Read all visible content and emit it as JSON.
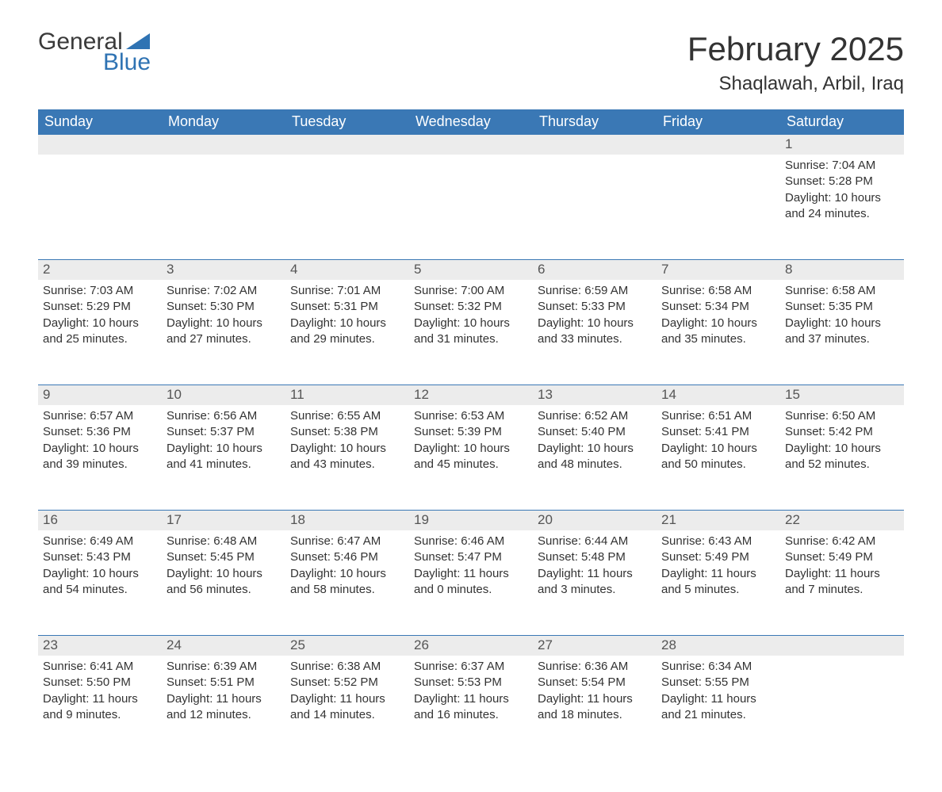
{
  "logo": {
    "word1": "General",
    "word2": "Blue"
  },
  "title": "February 2025",
  "location": "Shaqlawah, Arbil, Iraq",
  "calendar": {
    "type": "table",
    "header_bg": "#3a78b5",
    "header_text_color": "#ffffff",
    "daynum_bg": "#ececec",
    "border_color": "#3a78b5",
    "body_text_color": "#333333",
    "font_family": "Arial",
    "header_fontsize": 18,
    "daynum_fontsize": 17,
    "body_fontsize": 15,
    "columns": [
      "Sunday",
      "Monday",
      "Tuesday",
      "Wednesday",
      "Thursday",
      "Friday",
      "Saturday"
    ],
    "weeks": [
      [
        null,
        null,
        null,
        null,
        null,
        null,
        {
          "d": "1",
          "sunrise": "Sunrise: 7:04 AM",
          "sunset": "Sunset: 5:28 PM",
          "day1": "Daylight: 10 hours",
          "day2": "and 24 minutes."
        }
      ],
      [
        {
          "d": "2",
          "sunrise": "Sunrise: 7:03 AM",
          "sunset": "Sunset: 5:29 PM",
          "day1": "Daylight: 10 hours",
          "day2": "and 25 minutes."
        },
        {
          "d": "3",
          "sunrise": "Sunrise: 7:02 AM",
          "sunset": "Sunset: 5:30 PM",
          "day1": "Daylight: 10 hours",
          "day2": "and 27 minutes."
        },
        {
          "d": "4",
          "sunrise": "Sunrise: 7:01 AM",
          "sunset": "Sunset: 5:31 PM",
          "day1": "Daylight: 10 hours",
          "day2": "and 29 minutes."
        },
        {
          "d": "5",
          "sunrise": "Sunrise: 7:00 AM",
          "sunset": "Sunset: 5:32 PM",
          "day1": "Daylight: 10 hours",
          "day2": "and 31 minutes."
        },
        {
          "d": "6",
          "sunrise": "Sunrise: 6:59 AM",
          "sunset": "Sunset: 5:33 PM",
          "day1": "Daylight: 10 hours",
          "day2": "and 33 minutes."
        },
        {
          "d": "7",
          "sunrise": "Sunrise: 6:58 AM",
          "sunset": "Sunset: 5:34 PM",
          "day1": "Daylight: 10 hours",
          "day2": "and 35 minutes."
        },
        {
          "d": "8",
          "sunrise": "Sunrise: 6:58 AM",
          "sunset": "Sunset: 5:35 PM",
          "day1": "Daylight: 10 hours",
          "day2": "and 37 minutes."
        }
      ],
      [
        {
          "d": "9",
          "sunrise": "Sunrise: 6:57 AM",
          "sunset": "Sunset: 5:36 PM",
          "day1": "Daylight: 10 hours",
          "day2": "and 39 minutes."
        },
        {
          "d": "10",
          "sunrise": "Sunrise: 6:56 AM",
          "sunset": "Sunset: 5:37 PM",
          "day1": "Daylight: 10 hours",
          "day2": "and 41 minutes."
        },
        {
          "d": "11",
          "sunrise": "Sunrise: 6:55 AM",
          "sunset": "Sunset: 5:38 PM",
          "day1": "Daylight: 10 hours",
          "day2": "and 43 minutes."
        },
        {
          "d": "12",
          "sunrise": "Sunrise: 6:53 AM",
          "sunset": "Sunset: 5:39 PM",
          "day1": "Daylight: 10 hours",
          "day2": "and 45 minutes."
        },
        {
          "d": "13",
          "sunrise": "Sunrise: 6:52 AM",
          "sunset": "Sunset: 5:40 PM",
          "day1": "Daylight: 10 hours",
          "day2": "and 48 minutes."
        },
        {
          "d": "14",
          "sunrise": "Sunrise: 6:51 AM",
          "sunset": "Sunset: 5:41 PM",
          "day1": "Daylight: 10 hours",
          "day2": "and 50 minutes."
        },
        {
          "d": "15",
          "sunrise": "Sunrise: 6:50 AM",
          "sunset": "Sunset: 5:42 PM",
          "day1": "Daylight: 10 hours",
          "day2": "and 52 minutes."
        }
      ],
      [
        {
          "d": "16",
          "sunrise": "Sunrise: 6:49 AM",
          "sunset": "Sunset: 5:43 PM",
          "day1": "Daylight: 10 hours",
          "day2": "and 54 minutes."
        },
        {
          "d": "17",
          "sunrise": "Sunrise: 6:48 AM",
          "sunset": "Sunset: 5:45 PM",
          "day1": "Daylight: 10 hours",
          "day2": "and 56 minutes."
        },
        {
          "d": "18",
          "sunrise": "Sunrise: 6:47 AM",
          "sunset": "Sunset: 5:46 PM",
          "day1": "Daylight: 10 hours",
          "day2": "and 58 minutes."
        },
        {
          "d": "19",
          "sunrise": "Sunrise: 6:46 AM",
          "sunset": "Sunset: 5:47 PM",
          "day1": "Daylight: 11 hours",
          "day2": "and 0 minutes."
        },
        {
          "d": "20",
          "sunrise": "Sunrise: 6:44 AM",
          "sunset": "Sunset: 5:48 PM",
          "day1": "Daylight: 11 hours",
          "day2": "and 3 minutes."
        },
        {
          "d": "21",
          "sunrise": "Sunrise: 6:43 AM",
          "sunset": "Sunset: 5:49 PM",
          "day1": "Daylight: 11 hours",
          "day2": "and 5 minutes."
        },
        {
          "d": "22",
          "sunrise": "Sunrise: 6:42 AM",
          "sunset": "Sunset: 5:49 PM",
          "day1": "Daylight: 11 hours",
          "day2": "and 7 minutes."
        }
      ],
      [
        {
          "d": "23",
          "sunrise": "Sunrise: 6:41 AM",
          "sunset": "Sunset: 5:50 PM",
          "day1": "Daylight: 11 hours",
          "day2": "and 9 minutes."
        },
        {
          "d": "24",
          "sunrise": "Sunrise: 6:39 AM",
          "sunset": "Sunset: 5:51 PM",
          "day1": "Daylight: 11 hours",
          "day2": "and 12 minutes."
        },
        {
          "d": "25",
          "sunrise": "Sunrise: 6:38 AM",
          "sunset": "Sunset: 5:52 PM",
          "day1": "Daylight: 11 hours",
          "day2": "and 14 minutes."
        },
        {
          "d": "26",
          "sunrise": "Sunrise: 6:37 AM",
          "sunset": "Sunset: 5:53 PM",
          "day1": "Daylight: 11 hours",
          "day2": "and 16 minutes."
        },
        {
          "d": "27",
          "sunrise": "Sunrise: 6:36 AM",
          "sunset": "Sunset: 5:54 PM",
          "day1": "Daylight: 11 hours",
          "day2": "and 18 minutes."
        },
        {
          "d": "28",
          "sunrise": "Sunrise: 6:34 AM",
          "sunset": "Sunset: 5:55 PM",
          "day1": "Daylight: 11 hours",
          "day2": "and 21 minutes."
        },
        null
      ]
    ]
  }
}
